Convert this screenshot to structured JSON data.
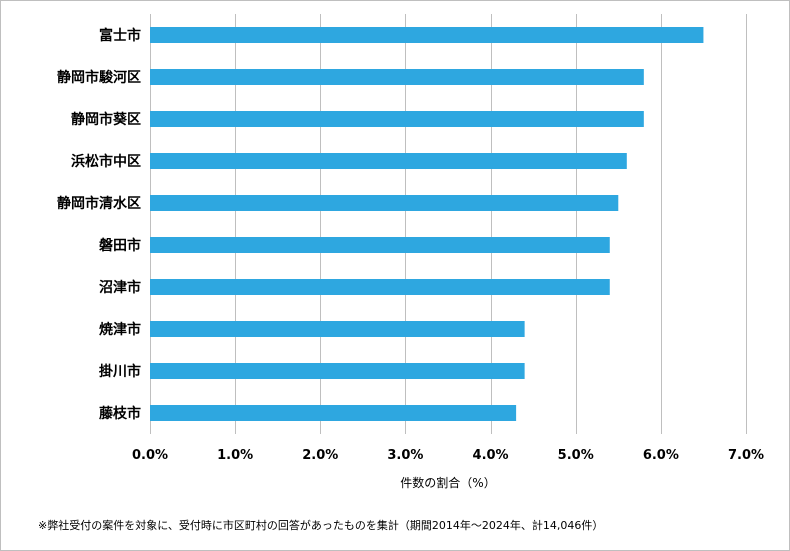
{
  "chart_data": {
    "type": "bar",
    "orientation": "horizontal",
    "categories": [
      "富士市",
      "静岡市駿河区",
      "静岡市葵区",
      "浜松市中区",
      "静岡市清水区",
      "磐田市",
      "沼津市",
      "焼津市",
      "掛川市",
      "藤枝市"
    ],
    "values": [
      6.5,
      5.8,
      5.8,
      5.6,
      5.5,
      5.4,
      5.4,
      4.4,
      4.4,
      4.3
    ],
    "x_ticks": [
      "0.0%",
      "1.0%",
      "2.0%",
      "3.0%",
      "4.0%",
      "5.0%",
      "6.0%",
      "7.0%"
    ],
    "xlim": [
      0,
      7
    ],
    "xlabel": "件数の割合（%）",
    "ylabel": "",
    "title": "",
    "grid": "vertical",
    "bar_color": "#2ea7e0",
    "grid_color": "#bfbfbf",
    "legend": "none"
  },
  "footnote": "※弊社受付の案件を対象に、受付時に市区町村の回答があったものを集計（期間2014年～2024年、計14,046件）"
}
